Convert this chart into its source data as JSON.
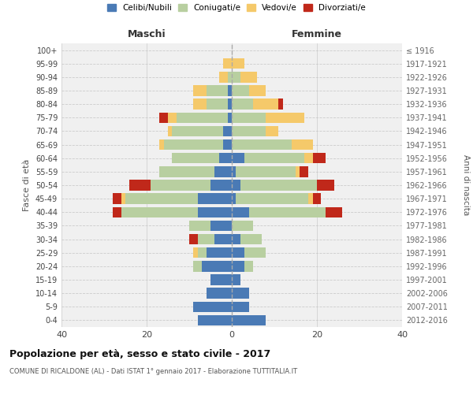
{
  "age_groups": [
    "0-4",
    "5-9",
    "10-14",
    "15-19",
    "20-24",
    "25-29",
    "30-34",
    "35-39",
    "40-44",
    "45-49",
    "50-54",
    "55-59",
    "60-64",
    "65-69",
    "70-74",
    "75-79",
    "80-84",
    "85-89",
    "90-94",
    "95-99",
    "100+"
  ],
  "birth_years": [
    "2012-2016",
    "2007-2011",
    "2002-2006",
    "1997-2001",
    "1992-1996",
    "1987-1991",
    "1982-1986",
    "1977-1981",
    "1972-1976",
    "1967-1971",
    "1962-1966",
    "1957-1961",
    "1952-1956",
    "1947-1951",
    "1942-1946",
    "1937-1941",
    "1932-1936",
    "1927-1931",
    "1922-1926",
    "1917-1921",
    "≤ 1916"
  ],
  "colors": {
    "celibi": "#4a7ab5",
    "coniugati": "#b8cfa0",
    "vedovi": "#f5c96a",
    "divorziati": "#c0281a",
    "background": "#f0f0f0",
    "grid_major": "#cccccc",
    "grid_minor": "#dddddd",
    "centerline": "#aaaaaa"
  },
  "maschi": {
    "celibi": [
      8,
      9,
      6,
      5,
      7,
      6,
      4,
      5,
      8,
      8,
      5,
      4,
      3,
      2,
      2,
      1,
      1,
      1,
      0,
      0,
      0
    ],
    "coniugati": [
      0,
      0,
      0,
      0,
      2,
      2,
      4,
      5,
      18,
      17,
      14,
      13,
      11,
      14,
      12,
      12,
      5,
      5,
      1,
      0,
      0
    ],
    "vedovi": [
      0,
      0,
      0,
      0,
      0,
      1,
      0,
      0,
      0,
      1,
      0,
      0,
      0,
      1,
      1,
      2,
      3,
      3,
      2,
      2,
      0
    ],
    "divorziati": [
      0,
      0,
      0,
      0,
      0,
      0,
      2,
      0,
      2,
      2,
      5,
      0,
      0,
      0,
      0,
      2,
      0,
      0,
      0,
      0,
      0
    ]
  },
  "femmine": {
    "celibi": [
      8,
      4,
      4,
      2,
      3,
      3,
      2,
      0,
      4,
      1,
      2,
      1,
      3,
      0,
      0,
      0,
      0,
      0,
      0,
      0,
      0
    ],
    "coniugati": [
      0,
      0,
      0,
      0,
      2,
      5,
      5,
      5,
      18,
      17,
      18,
      14,
      14,
      14,
      8,
      8,
      5,
      4,
      2,
      0,
      0
    ],
    "vedovi": [
      0,
      0,
      0,
      0,
      0,
      0,
      0,
      0,
      0,
      1,
      0,
      1,
      2,
      5,
      3,
      9,
      6,
      4,
      4,
      3,
      0
    ],
    "divorziati": [
      0,
      0,
      0,
      0,
      0,
      0,
      0,
      0,
      4,
      2,
      4,
      2,
      3,
      0,
      0,
      0,
      1,
      0,
      0,
      0,
      0
    ]
  },
  "xlim": [
    -40,
    40
  ],
  "xticks": [
    -40,
    -20,
    0,
    20,
    40
  ],
  "xticklabels": [
    "40",
    "20",
    "0",
    "20",
    "40"
  ],
  "title": "Popolazione per età, sesso e stato civile - 2017",
  "subtitle": "COMUNE DI RICALDONE (AL) - Dati ISTAT 1° gennaio 2017 - Elaborazione TUTTITALIA.IT",
  "ylabel_left": "Fasce di età",
  "ylabel_right": "Anni di nascita",
  "legend_labels": [
    "Celibi/Nubili",
    "Coniugati/e",
    "Vedovi/e",
    "Divorziati/e"
  ]
}
